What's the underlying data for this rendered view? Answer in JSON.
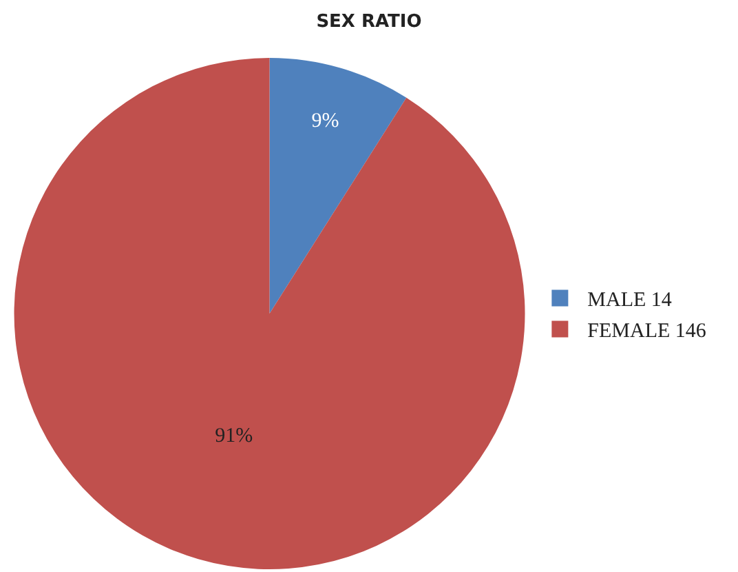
{
  "chart_data": {
    "type": "pie",
    "title": "SEX RATIO",
    "categories": [
      "MALE 14",
      "FEMALE 146"
    ],
    "values": [
      9,
      91
    ],
    "colors": [
      "#4f81bd",
      "#c0504d"
    ],
    "value_labels": [
      "9%",
      "91%"
    ],
    "legend": "right"
  }
}
